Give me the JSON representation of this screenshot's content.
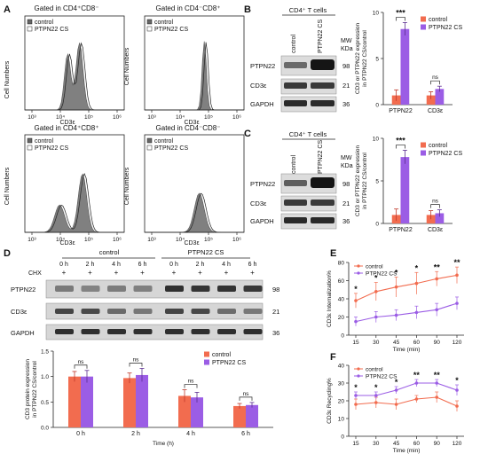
{
  "colors": {
    "control": "#f26c4f",
    "ptpn22": "#9b5de5",
    "hist": "#808080",
    "axis": "#222222"
  },
  "panels": {
    "A": {
      "letter": "A",
      "plots": [
        {
          "title": "Gated in CD4⁺CD8⁻",
          "legend": [
            "control",
            "PTPN22 CS"
          ],
          "ylabel": "Cell Numbers",
          "xlabel": "CD3ε",
          "ticks": [
            "10³",
            "10⁴",
            "10⁵",
            "10⁶"
          ]
        },
        {
          "title": "Gated in CD4⁻CD8⁺",
          "legend": [
            "control",
            "PTPN22 CS"
          ],
          "ylabel": "Cell Numbers",
          "xlabel": "CD3ε",
          "ticks": [
            "10³",
            "10⁴",
            "10⁵",
            "10⁶"
          ]
        },
        {
          "title": "Gated in CD4⁺CD8⁺",
          "legend": [
            "control",
            "PTPN22 CS"
          ],
          "ylabel": "Cell Numbers",
          "xlabel": "CD3ε",
          "ticks": [
            "10³",
            "10⁴",
            "10⁵",
            "10⁶"
          ]
        },
        {
          "title": "Gated in CD4⁻CD8⁻",
          "legend": [
            "control",
            "PTPN22 CS"
          ],
          "ylabel": "Cell Numbers",
          "xlabel": "CD3ε",
          "ticks": [
            "10³",
            "10⁴",
            "10⁵",
            "10⁶"
          ]
        }
      ]
    },
    "B": {
      "letter": "B",
      "blot_title": "CD4⁺ T cells",
      "lanes": [
        "control",
        "PTPN22 CS"
      ],
      "mw_label": "MW",
      "kda_label": "KDa",
      "rows": [
        {
          "label": "PTPN22",
          "mw": "98"
        },
        {
          "label": "CD3ε",
          "mw": "21"
        },
        {
          "label": "GAPDH",
          "mw": "36"
        }
      ]
    },
    "C": {
      "letter": "C",
      "blot_title": "CD4⁺ T cells",
      "lanes": [
        "control",
        "PTPN22 CS"
      ],
      "mw_label": "MW",
      "kda_label": "KDa",
      "rows": [
        {
          "label": "PTPN22",
          "mw": "98"
        },
        {
          "label": "CD3ε",
          "mw": "21"
        },
        {
          "label": "GAPDH",
          "mw": "36"
        }
      ]
    },
    "D": {
      "letter": "D",
      "group_labels": [
        "control",
        "PTPN22 CS"
      ],
      "chx_label": "CHX",
      "times": [
        "0 h",
        "2 h",
        "4 h",
        "6 h",
        "0 h",
        "2 h",
        "4 h",
        "6 h"
      ],
      "chx_marks": [
        "+",
        "+",
        "+",
        "+",
        "+",
        "+",
        "+",
        "+"
      ],
      "rows": [
        {
          "label": "PTPN22",
          "mw": "98"
        },
        {
          "label": "CD3ε",
          "mw": "21"
        },
        {
          "label": "GAPDH",
          "mw": "36"
        }
      ]
    },
    "E": {
      "letter": "E"
    },
    "F": {
      "letter": "F"
    }
  },
  "chart_data": [
    {
      "id": "B-bar",
      "type": "bar",
      "categories": [
        "PTPN22",
        "CD3ε"
      ],
      "series": [
        {
          "name": "control",
          "values": [
            1.0,
            1.0
          ],
          "errors": [
            0.6,
            0.4
          ]
        },
        {
          "name": "PTPN22 CS",
          "values": [
            8.2,
            1.7
          ],
          "errors": [
            0.7,
            0.3
          ]
        }
      ],
      "ylabel": "CD3 or PTPN22 expression in PTPN22 CS/control",
      "yticks": [
        "0",
        "5",
        "10"
      ],
      "ylim": [
        0,
        10
      ],
      "significance": [
        "***",
        "ns"
      ],
      "legend": "top-right"
    },
    {
      "id": "C-bar",
      "type": "bar",
      "categories": [
        "PTPN22",
        "CD3ε"
      ],
      "series": [
        {
          "name": "control",
          "values": [
            1.0,
            1.0
          ],
          "errors": [
            0.7,
            0.5
          ]
        },
        {
          "name": "PTPN22 CS",
          "values": [
            7.8,
            1.2
          ],
          "errors": [
            0.8,
            0.4
          ]
        }
      ],
      "ylabel": "CD3 or PTPN22 expression in PTPN22 CS/control",
      "yticks": [
        "0",
        "5",
        "10"
      ],
      "ylim": [
        0,
        10
      ],
      "significance": [
        "***",
        "ns"
      ],
      "legend": "top-right"
    },
    {
      "id": "D-bar",
      "type": "bar",
      "categories": [
        "0 h",
        "2 h",
        "4 h",
        "6 h"
      ],
      "series": [
        {
          "name": "control",
          "values": [
            1.0,
            0.97,
            0.62,
            0.42
          ],
          "errors": [
            0.1,
            0.1,
            0.12,
            0.05
          ]
        },
        {
          "name": "PTPN22 CS",
          "values": [
            1.0,
            1.03,
            0.59,
            0.44
          ],
          "errors": [
            0.12,
            0.13,
            0.1,
            0.05
          ]
        }
      ],
      "ylabel": "CD3 protein expression in PTPN22 CS/control",
      "xlabel": "Time (h)",
      "yticks": [
        "0.0",
        "0.5",
        "1.0",
        "1.5"
      ],
      "ylim": [
        0,
        1.5
      ],
      "significance": [
        "ns",
        "ns",
        "ns",
        "ns"
      ],
      "legend": "top-right"
    },
    {
      "id": "E-line",
      "type": "line",
      "x": [
        15,
        30,
        45,
        60,
        90,
        120
      ],
      "xticks": [
        "15",
        "30",
        "45",
        "60",
        "90",
        "120"
      ],
      "series": [
        {
          "name": "control",
          "values": [
            38,
            48,
            53,
            57,
            62,
            66
          ],
          "errors": [
            8,
            10,
            11,
            12,
            8,
            9
          ]
        },
        {
          "name": "PTPN22 CS",
          "values": [
            15,
            20,
            22,
            25,
            28,
            35
          ],
          "errors": [
            5,
            6,
            6,
            7,
            7,
            7
          ]
        }
      ],
      "ylabel": "CD3ε Internalization%",
      "xlabel": "Time (min)",
      "yticks": [
        "0",
        "20",
        "40",
        "60",
        "80"
      ],
      "ylim": [
        0,
        80
      ],
      "significance": [
        "*",
        "*",
        "*",
        "*",
        "**",
        "**"
      ],
      "legend": "top-left"
    },
    {
      "id": "F-line",
      "type": "line",
      "x": [
        15,
        30,
        45,
        60,
        90,
        120
      ],
      "xticks": [
        "15",
        "30",
        "45",
        "60",
        "90",
        "120"
      ],
      "series": [
        {
          "name": "control",
          "values": [
            18,
            19,
            18,
            21,
            22,
            17
          ],
          "errors": [
            3,
            3,
            3,
            2,
            3,
            3
          ]
        },
        {
          "name": "PTPN22 CS",
          "values": [
            23,
            23,
            26,
            30,
            30,
            26
          ],
          "errors": [
            2,
            2,
            2,
            2,
            2,
            3
          ]
        }
      ],
      "ylabel": "CD3ε Recycling%",
      "xlabel": "Time (min)",
      "yticks": [
        "0",
        "10",
        "20",
        "30",
        "40"
      ],
      "ylim": [
        0,
        40
      ],
      "significance": [
        "*",
        "*",
        "*",
        "**",
        "**",
        "*"
      ],
      "legend": "top-left"
    }
  ]
}
